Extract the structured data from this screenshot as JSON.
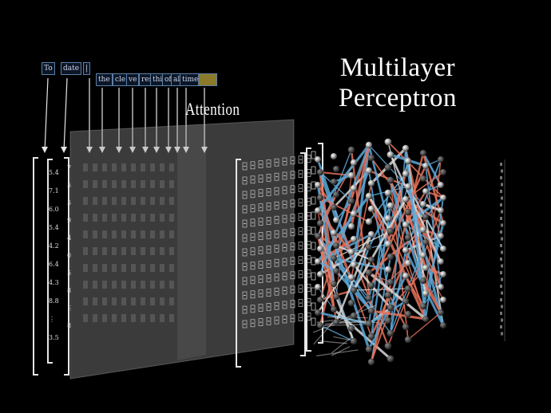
{
  "titles": {
    "mlp_line1": "Multilayer",
    "mlp_line2": "Perceptron",
    "attention": "Attention"
  },
  "tokens": [
    "To",
    "date",
    "|",
    "the",
    "cle",
    "ve",
    "rest",
    "thinker",
    "of",
    "all",
    "time",
    "was"
  ],
  "first_vector": {
    "values": [
      "5.4",
      "7.1",
      "6.0",
      "5.4",
      "4.2",
      "6.4",
      "4.3",
      "8.8",
      "⋮",
      "3.5"
    ]
  },
  "second_vector": {
    "values": [
      "7",
      "5",
      "5",
      "9",
      "4",
      "0",
      "5",
      "8",
      "⋮",
      "8"
    ]
  },
  "colors": {
    "background": "#000000",
    "edge_orange": "#e8735a",
    "edge_blue": "#5aa8d8",
    "edge_white": "#d8d8d8",
    "token_border": "#5a7fa8",
    "attention_panel": "#9a9a9a"
  }
}
